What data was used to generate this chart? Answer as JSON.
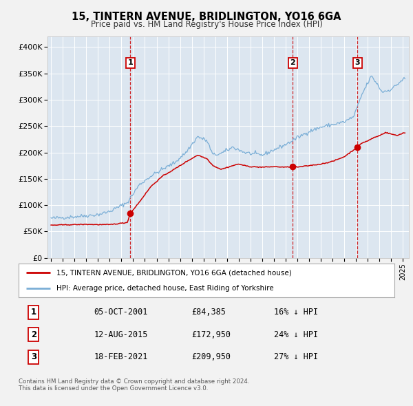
{
  "title": "15, TINTERN AVENUE, BRIDLINGTON, YO16 6GA",
  "subtitle": "Price paid vs. HM Land Registry's House Price Index (HPI)",
  "bg_color": "#f2f2f2",
  "plot_bg_color": "#dce6f0",
  "grid_color": "#ffffff",
  "red_line_color": "#cc0000",
  "blue_line_color": "#7aaed6",
  "sale_marker_color": "#cc0000",
  "vline_color": "#cc0000",
  "ylim": [
    0,
    420000
  ],
  "yticks": [
    0,
    50000,
    100000,
    150000,
    200000,
    250000,
    300000,
    350000,
    400000
  ],
  "ytick_labels": [
    "£0",
    "£50K",
    "£100K",
    "£150K",
    "£200K",
    "£250K",
    "£300K",
    "£350K",
    "£400K"
  ],
  "sale_dates_decimal": [
    2001.75,
    2015.6,
    2021.12
  ],
  "sale_prices": [
    84385,
    172950,
    209950
  ],
  "sale_labels": [
    "1",
    "2",
    "3"
  ],
  "legend_red": "15, TINTERN AVENUE, BRIDLINGTON, YO16 6GA (detached house)",
  "legend_blue": "HPI: Average price, detached house, East Riding of Yorkshire",
  "table_rows": [
    [
      "1",
      "05-OCT-2001",
      "£84,385",
      "16% ↓ HPI"
    ],
    [
      "2",
      "12-AUG-2015",
      "£172,950",
      "24% ↓ HPI"
    ],
    [
      "3",
      "18-FEB-2021",
      "£209,950",
      "27% ↓ HPI"
    ]
  ],
  "footer": "Contains HM Land Registry data © Crown copyright and database right 2024.\nThis data is licensed under the Open Government Licence v3.0.",
  "xstart": 1994.7,
  "xend": 2025.5
}
